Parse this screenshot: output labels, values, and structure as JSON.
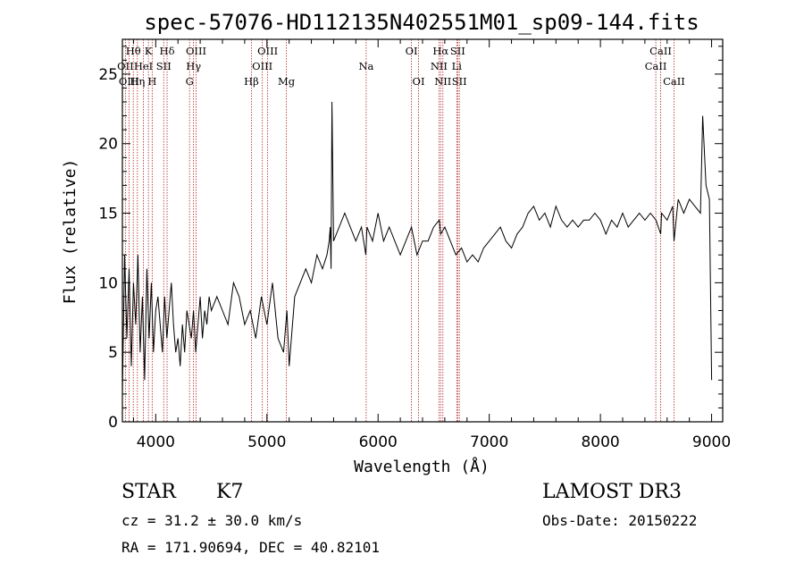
{
  "chart_data": {
    "type": "line",
    "title": "spec-57076-HD112135N402551M01_sp09-144.fits",
    "xlabel": "Wavelength (Å)",
    "ylabel": "Flux (relative)",
    "xlim": [
      3700,
      9100
    ],
    "ylim": [
      0,
      27.5
    ],
    "xticks": [
      4000,
      5000,
      6000,
      7000,
      8000,
      9000
    ],
    "yticks": [
      0,
      5,
      10,
      15,
      20,
      25
    ],
    "grid": false,
    "series": [
      {
        "x": [
          3700,
          3720,
          3740,
          3760,
          3780,
          3800,
          3820,
          3840,
          3860,
          3880,
          3900,
          3920,
          3940,
          3960,
          3980,
          4000,
          4020,
          4040,
          4060,
          4080,
          4100,
          4120,
          4140,
          4160,
          4180,
          4200,
          4220,
          4240,
          4260,
          4280,
          4300,
          4320,
          4340,
          4360,
          4380,
          4400,
          4420,
          4440,
          4460,
          4480,
          4500,
          4550,
          4600,
          4650,
          4700,
          4750,
          4800,
          4850,
          4900,
          4950,
          5000,
          5050,
          5100,
          5150,
          5180,
          5200,
          5250,
          5300,
          5350,
          5400,
          5450,
          5500,
          5540,
          5560,
          5570,
          5577,
          5585,
          5600,
          5650,
          5700,
          5750,
          5800,
          5850,
          5890,
          5900,
          5950,
          6000,
          6050,
          6100,
          6150,
          6200,
          6250,
          6300,
          6350,
          6400,
          6450,
          6500,
          6550,
          6563,
          6600,
          6650,
          6700,
          6750,
          6800,
          6850,
          6900,
          6950,
          7000,
          7050,
          7100,
          7150,
          7200,
          7250,
          7300,
          7350,
          7400,
          7450,
          7500,
          7550,
          7600,
          7650,
          7700,
          7750,
          7800,
          7850,
          7900,
          7950,
          8000,
          8050,
          8100,
          8150,
          8200,
          8250,
          8300,
          8350,
          8400,
          8450,
          8500,
          8542,
          8550,
          8600,
          8650,
          8662,
          8700,
          8750,
          8800,
          8850,
          8900,
          8920,
          8950,
          8980,
          9000
        ],
        "y": [
          2,
          12,
          6,
          11,
          4,
          10,
          7,
          12,
          5,
          9,
          3,
          11,
          6,
          10,
          5,
          8,
          9,
          7,
          5,
          9,
          6,
          8,
          10,
          7,
          5,
          6,
          4,
          7,
          5,
          8,
          7,
          6,
          8,
          5,
          7,
          9,
          6,
          8,
          7,
          9,
          8,
          9,
          8,
          7,
          10,
          9,
          7,
          8,
          6,
          9,
          7,
          10,
          6,
          5,
          8,
          4,
          9,
          10,
          11,
          10,
          12,
          11,
          12,
          13,
          14,
          11,
          23,
          13,
          14,
          15,
          14,
          13,
          14,
          12,
          14,
          13,
          15,
          13,
          14,
          13,
          12,
          13,
          14,
          12,
          13,
          13,
          14,
          14.5,
          13.5,
          14,
          13,
          12,
          12.5,
          11.5,
          12,
          11.5,
          12.5,
          13,
          13.5,
          14,
          13,
          12.5,
          13.5,
          14,
          15,
          15.5,
          14.5,
          15,
          14,
          15.5,
          14.5,
          14,
          14.5,
          14,
          14.5,
          14.5,
          15,
          14.5,
          13.5,
          14.5,
          14,
          15,
          14,
          14.5,
          15,
          14.5,
          15,
          14.5,
          13.5,
          15,
          14.5,
          15.5,
          13,
          16,
          15,
          16,
          15.5,
          15,
          22,
          17,
          16,
          3
        ]
      }
    ],
    "spectral_lines": [
      {
        "label": "Hθ",
        "x": 3798,
        "row": 1
      },
      {
        "label": "OII",
        "x": 3727,
        "row": 2
      },
      {
        "label": "OIII",
        "x": 3760,
        "row": 3
      },
      {
        "label": "Hη",
        "x": 3835,
        "row": 3
      },
      {
        "label": "HeI",
        "x": 3889,
        "row": 2
      },
      {
        "label": "K",
        "x": 3934,
        "row": 1
      },
      {
        "label": "H",
        "x": 3968,
        "row": 3
      },
      {
        "label": "SII",
        "x": 4072,
        "row": 2
      },
      {
        "label": "Hδ",
        "x": 4102,
        "row": 1
      },
      {
        "label": "OIII",
        "x": 4363,
        "row": 1
      },
      {
        "label": "Hγ",
        "x": 4340,
        "row": 2
      },
      {
        "label": "G",
        "x": 4304,
        "row": 3
      },
      {
        "label": "Hβ",
        "x": 4861,
        "row": 3
      },
      {
        "label": "OIII",
        "x": 5007,
        "row": 1
      },
      {
        "label": "OIII",
        "x": 4959,
        "row": 2
      },
      {
        "label": "Mg",
        "x": 5175,
        "row": 3
      },
      {
        "label": "Na",
        "x": 5893,
        "row": 2
      },
      {
        "label": "OI",
        "x": 6300,
        "row": 1
      },
      {
        "label": "OI",
        "x": 6364,
        "row": 3
      },
      {
        "label": "Hα",
        "x": 6563,
        "row": 1
      },
      {
        "label": "SII",
        "x": 6716,
        "row": 1
      },
      {
        "label": "NII",
        "x": 6548,
        "row": 2
      },
      {
        "label": "Li",
        "x": 6708,
        "row": 2
      },
      {
        "label": "NII",
        "x": 6583,
        "row": 3
      },
      {
        "label": "SII",
        "x": 6731,
        "row": 3
      },
      {
        "label": "CaII",
        "x": 8542,
        "row": 1
      },
      {
        "label": "CaII",
        "x": 8498,
        "row": 2
      },
      {
        "label": "CaII",
        "x": 8662,
        "row": 3
      }
    ]
  },
  "info": {
    "object_type": "STAR",
    "subclass": "K7",
    "survey": "LAMOST DR3",
    "cz": "cz = 31.2 ± 30.0 km/s",
    "obs_date": "Obs-Date: 20150222",
    "coords": "RA = 171.90694, DEC =  40.82101"
  }
}
